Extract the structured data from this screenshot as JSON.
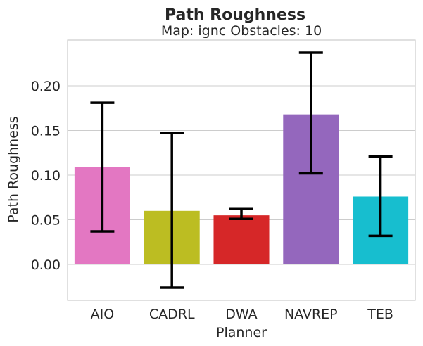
{
  "chart_data": {
    "type": "bar",
    "title": "Path Roughness",
    "subtitle": "Map: ignc Obstacles: 10",
    "xlabel": "Planner",
    "ylabel": "Path Roughness",
    "ylim": [
      -0.04,
      0.25
    ],
    "yticks": [
      "0.00",
      "0.05",
      "0.10",
      "0.15",
      "0.20"
    ],
    "ytick_values": [
      0.0,
      0.05,
      0.1,
      0.15,
      0.2
    ],
    "grid": true,
    "categories": [
      "AIO",
      "CADRL",
      "DWA",
      "NAVREP",
      "TEB"
    ],
    "values": [
      0.109,
      0.06,
      0.055,
      0.168,
      0.076
    ],
    "error_low": [
      0.037,
      -0.026,
      0.051,
      0.102,
      0.032
    ],
    "error_high": [
      0.181,
      0.147,
      0.062,
      0.237,
      0.121
    ],
    "colors": [
      "#e377c2",
      "#bcbd22",
      "#d62728",
      "#9467bd",
      "#17becf"
    ]
  }
}
